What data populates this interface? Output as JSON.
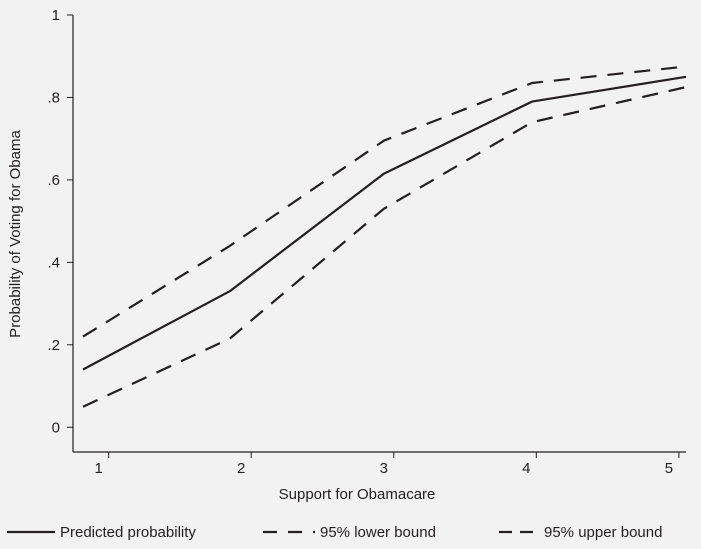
{
  "chart_data": {
    "type": "line",
    "xlabel": "Support for Obamacare",
    "ylabel": "Probability of Voting for Obama",
    "x": [
      1,
      2,
      3,
      4,
      5
    ],
    "x_tick_labels": [
      "1",
      "2",
      "3",
      "4",
      "5"
    ],
    "y_ticks": [
      0,
      0.2,
      0.4,
      0.6,
      0.8,
      1.0
    ],
    "y_tick_labels": [
      "0",
      ".2",
      ".4",
      ".6",
      ".8",
      "1"
    ],
    "xlim": [
      0.75,
      5.05
    ],
    "ylim": [
      -0.06,
      1.0
    ],
    "grid": false,
    "legend_position": "bottom",
    "series": [
      {
        "name": "Predicted probability",
        "style": "solid",
        "color": "#231f20",
        "points": [
          [
            0.82,
            0.14
          ],
          [
            1.85,
            0.33
          ],
          [
            2.93,
            0.615
          ],
          [
            3.97,
            0.79
          ],
          [
            5.05,
            0.85
          ]
        ]
      },
      {
        "name": "95% lower bound",
        "style": "dashed",
        "color": "#231f20",
        "points": [
          [
            0.82,
            0.05
          ],
          [
            1.85,
            0.215
          ],
          [
            2.93,
            0.53
          ],
          [
            3.97,
            0.74
          ],
          [
            5.05,
            0.825
          ]
        ]
      },
      {
        "name": "95% upper bound",
        "style": "dashed",
        "color": "#231f20",
        "points": [
          [
            0.82,
            0.22
          ],
          [
            1.85,
            0.44
          ],
          [
            2.93,
            0.695
          ],
          [
            3.97,
            0.835
          ],
          [
            5.05,
            0.875
          ]
        ]
      }
    ]
  }
}
